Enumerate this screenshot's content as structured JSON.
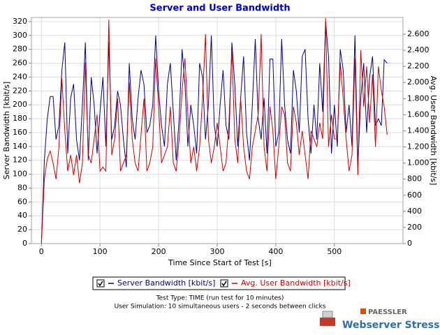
{
  "chart_data": {
    "type": "line",
    "title": "Server and User Bandwidth",
    "x_label": "Time Since Start of Test [s]",
    "y_label": "Server Bandwidth [kbit/s]",
    "y2_label": "Avg. User Bandwidth [kbit/s]",
    "x": [
      0,
      5,
      10,
      15,
      20,
      25,
      30,
      35,
      40,
      45,
      50,
      55,
      60,
      65,
      70,
      75,
      80,
      85,
      90,
      95,
      100,
      105,
      110,
      115,
      120,
      125,
      130,
      135,
      140,
      145,
      150,
      155,
      160,
      165,
      170,
      175,
      180,
      185,
      190,
      195,
      200,
      205,
      210,
      215,
      220,
      225,
      230,
      235,
      240,
      245,
      250,
      255,
      260,
      265,
      270,
      275,
      280,
      285,
      290,
      295,
      300,
      305,
      310,
      315,
      320,
      325,
      330,
      335,
      340,
      345,
      350,
      355,
      360,
      365,
      370,
      375,
      380,
      385,
      390,
      395,
      400,
      405,
      410,
      415,
      420,
      425,
      430,
      435,
      440,
      445,
      450,
      455,
      460,
      465,
      470,
      475,
      480,
      485,
      490,
      495,
      500,
      505,
      510,
      515,
      520,
      525,
      530,
      535,
      540,
      545,
      550,
      555,
      560,
      565,
      570,
      575,
      580,
      585,
      590
    ],
    "series": [
      {
        "name": "Server Bandwidth [kbit/s]",
        "color": "#00008b",
        "axis": "y",
        "values": [
          0,
          120,
          180,
          212,
          212,
          150,
          170,
          250,
          290,
          130,
          210,
          230,
          150,
          120,
          200,
          290,
          120,
          240,
          200,
          130,
          190,
          240,
          140,
          290,
          150,
          170,
          220,
          200,
          150,
          110,
          260,
          180,
          150,
          210,
          250,
          230,
          160,
          170,
          200,
          300,
          220,
          170,
          140,
          230,
          260,
          190,
          120,
          180,
          280,
          230,
          140,
          200,
          170,
          130,
          260,
          240,
          150,
          200,
          300,
          170,
          140,
          200,
          250,
          170,
          150,
          290,
          230,
          140,
          210,
          270,
          160,
          120,
          200,
          295,
          180,
          150,
          210,
          130,
          266,
          266,
          140,
          160,
          295,
          200,
          150,
          130,
          250,
          220,
          160,
          270,
          280,
          180,
          130,
          200,
          150,
          260,
          190,
          320,
          270,
          130,
          200,
          140,
          280,
          250,
          160,
          200,
          140,
          300,
          110,
          210,
          260,
          160,
          240,
          270,
          170,
          180,
          170,
          265,
          260
        ]
      },
      {
        "name": "Avg. User Bandwidth [kbit/s]",
        "color": "#cc0000",
        "axis": "y2",
        "values": [
          0,
          800,
          1050,
          1150,
          1000,
          800,
          1200,
          2050,
          1400,
          900,
          1100,
          850,
          1100,
          750,
          1000,
          2250,
          1100,
          1000,
          1300,
          1600,
          900,
          950,
          900,
          2780,
          1100,
          1300,
          1800,
          900,
          1000,
          1100,
          2000,
          1300,
          1000,
          900,
          1350,
          1800,
          900,
          1000,
          1200,
          2300,
          1700,
          1000,
          1100,
          1200,
          1700,
          1000,
          900,
          1300,
          1900,
          2300,
          1600,
          1000,
          1200,
          900,
          1200,
          1800,
          2600,
          1300,
          1000,
          1200,
          1500,
          1200,
          900,
          1000,
          1500,
          2400,
          1300,
          1000,
          1800,
          1200,
          900,
          800,
          1200,
          1400,
          1600,
          2600,
          1200,
          900,
          1700,
          1400,
          800,
          1200,
          1700,
          1600,
          1000,
          900,
          1700,
          1500,
          1100,
          1400,
          1100,
          800,
          1400,
          1300,
          1200,
          1500,
          1300,
          2800,
          1200,
          1600,
          1300,
          1300,
          2250,
          1800,
          1300,
          900,
          1100,
          2300,
          850,
          2400,
          1700,
          2200,
          1500,
          2100,
          1200,
          2200,
          1900,
          1700,
          1350
        ]
      }
    ],
    "xlim": [
      -17,
      617
    ],
    "xticks": [
      0,
      100,
      200,
      300,
      400,
      500
    ],
    "ylim": [
      0,
      326
    ],
    "yticks": [
      0,
      20,
      40,
      60,
      80,
      100,
      120,
      140,
      160,
      180,
      200,
      220,
      240,
      260,
      280,
      300,
      320
    ],
    "y2lim": [
      0,
      2808
    ],
    "y2ticks": [
      0,
      200,
      400,
      600,
      800,
      {
        "value": 1000,
        "label": "1.000"
      },
      {
        "value": 1200,
        "label": "1.200"
      },
      {
        "value": 1400,
        "label": "1.400"
      },
      {
        "value": 1600,
        "label": "1.600"
      },
      {
        "value": 1800,
        "label": "1.800"
      },
      {
        "value": 2000,
        "label": "2.000"
      },
      {
        "value": 2200,
        "label": "2.200"
      },
      {
        "value": 2400,
        "label": "2.400"
      },
      {
        "value": 2600,
        "label": "2.600"
      }
    ],
    "grid": true,
    "legend": "bottom",
    "notes": [
      "Test Type: TIME (run test for 10 minutes)",
      "User Simulation: 10 simultaneous users - 2 seconds between clicks"
    ]
  },
  "branding": {
    "company": "PAESSLER",
    "product": "Webserver Stress Tool"
  }
}
